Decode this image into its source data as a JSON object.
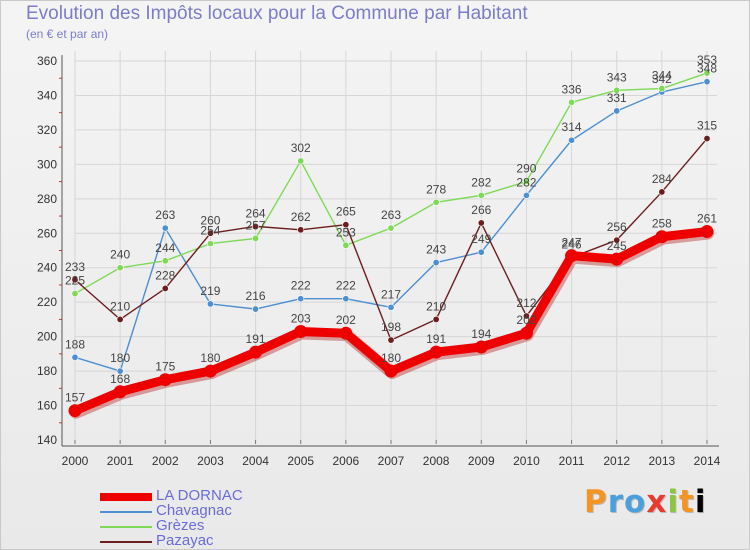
{
  "title": "Evolution des Impôts locaux pour la Commune par Habitant",
  "subtitle": "(en € et par an)",
  "brand": "Proxiti",
  "chart_data": {
    "type": "line",
    "title": "Evolution des Impôts locaux pour la Commune par Habitant",
    "subtitle": "(en € et par an)",
    "xlabel": "",
    "ylabel": "",
    "ylim": [
      140,
      360
    ],
    "y_ticks": [
      140,
      160,
      180,
      200,
      220,
      240,
      260,
      280,
      300,
      320,
      340,
      360
    ],
    "grid": true,
    "legend": "bottom-left",
    "categories": [
      "2000",
      "2001",
      "2002",
      "2003",
      "2004",
      "2005",
      "2006",
      "2007",
      "2008",
      "2009",
      "2010",
      "2011",
      "2012",
      "2013",
      "2014"
    ],
    "series": [
      {
        "name": "LA DORNAC",
        "color": "#ee0000",
        "values": [
          157,
          168,
          175,
          180,
          191,
          203,
          202,
          180,
          191,
          194,
          202,
          247,
          245,
          258,
          261
        ],
        "labels": [
          "157",
          "168",
          "175",
          "180",
          "191",
          "203",
          "202",
          "180",
          "191",
          "194",
          "202",
          "247",
          "245",
          "258",
          "261"
        ]
      },
      {
        "name": "Chavagnac",
        "color": "#4d8fd0",
        "values": [
          188,
          180,
          263,
          219,
          216,
          222,
          222,
          217,
          243,
          249,
          282,
          314,
          331,
          342,
          348
        ],
        "labels": [
          "188",
          "180",
          "263",
          "219",
          "216",
          "222",
          "222",
          "217",
          "243",
          "249",
          "282",
          "314",
          "331",
          "342",
          "348"
        ]
      },
      {
        "name": "Grèzes",
        "color": "#7ed957",
        "values": [
          225,
          240,
          244,
          254,
          257,
          302,
          253,
          263,
          278,
          282,
          290,
          336,
          343,
          344,
          353
        ],
        "labels": [
          "225",
          "240",
          "244",
          "254",
          "257",
          "302",
          "253",
          "263",
          "278",
          "282",
          "290",
          "336",
          "343",
          "344",
          "353"
        ]
      },
      {
        "name": "Pazayac",
        "color": "#6b1e1e",
        "values": [
          233,
          210,
          228,
          260,
          264,
          262,
          265,
          198,
          210,
          266,
          212,
          246,
          256,
          284,
          315
        ],
        "labels": [
          "233",
          "210",
          "228",
          "260",
          "264",
          "262",
          "265",
          "198",
          "210",
          "266",
          "212",
          "246",
          "256",
          "284",
          "315"
        ]
      }
    ]
  }
}
